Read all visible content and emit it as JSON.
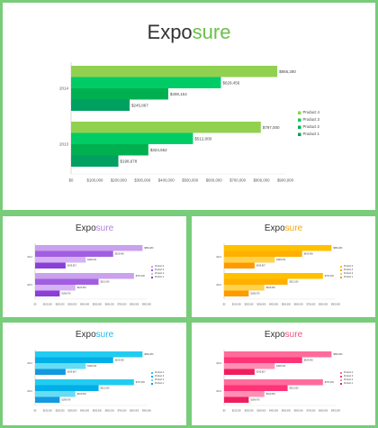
{
  "title": {
    "prefix": "Expo",
    "suffix": "sure"
  },
  "chart_data": {
    "type": "bar",
    "orientation": "horizontal",
    "categories": [
      "2014",
      "2013"
    ],
    "series": [
      {
        "name": "Product 4",
        "values": [
          866280,
          797000
        ]
      },
      {
        "name": "Product 3",
        "values": [
          629456,
          512000
        ]
      },
      {
        "name": "Product 2",
        "values": [
          408154,
          324552
        ]
      },
      {
        "name": "Product 1",
        "values": [
          245867,
          198678
        ]
      }
    ],
    "data_labels": [
      [
        "$866,280",
        "$629,456",
        "$408,154",
        "$245,867"
      ],
      [
        "$797,000",
        "$512,000",
        "$324,552",
        "$198,678"
      ]
    ],
    "x_ticks": [
      0,
      100000,
      200000,
      300000,
      400000,
      500000,
      600000,
      700000,
      800000,
      900000
    ],
    "x_tick_labels": [
      "$0",
      "$100,000",
      "$200,000",
      "$300,000",
      "$400,000",
      "$500,000",
      "$600,000",
      "$700,000",
      "$800,000",
      "$900,000"
    ],
    "xlim": [
      0,
      900000
    ],
    "legend_placement": "right",
    "legend_entries": [
      "Product 4",
      "Product 3",
      "Product 2",
      "Product 1"
    ],
    "grid": false
  },
  "themes": [
    {
      "name": "green",
      "accent": "#6cc04a",
      "colors": [
        "#92d050",
        "#00cc66",
        "#00b050",
        "#00a060"
      ]
    },
    {
      "name": "purple",
      "accent": "#b27ee0",
      "colors": [
        "#c9a1ee",
        "#a15ee0",
        "#d5b3f5",
        "#8a3fd6"
      ]
    },
    {
      "name": "orange",
      "accent": "#ffa500",
      "colors": [
        "#ffc000",
        "#ffb000",
        "#ffd24d",
        "#ff9900"
      ]
    },
    {
      "name": "cyan",
      "accent": "#20b8e8",
      "colors": [
        "#22ccf0",
        "#00aee8",
        "#66ddf5",
        "#1399e0"
      ]
    },
    {
      "name": "pink",
      "accent": "#f0507a",
      "colors": [
        "#ff6b9a",
        "#ff3377",
        "#ff8fb5",
        "#f01e5e"
      ]
    }
  ]
}
